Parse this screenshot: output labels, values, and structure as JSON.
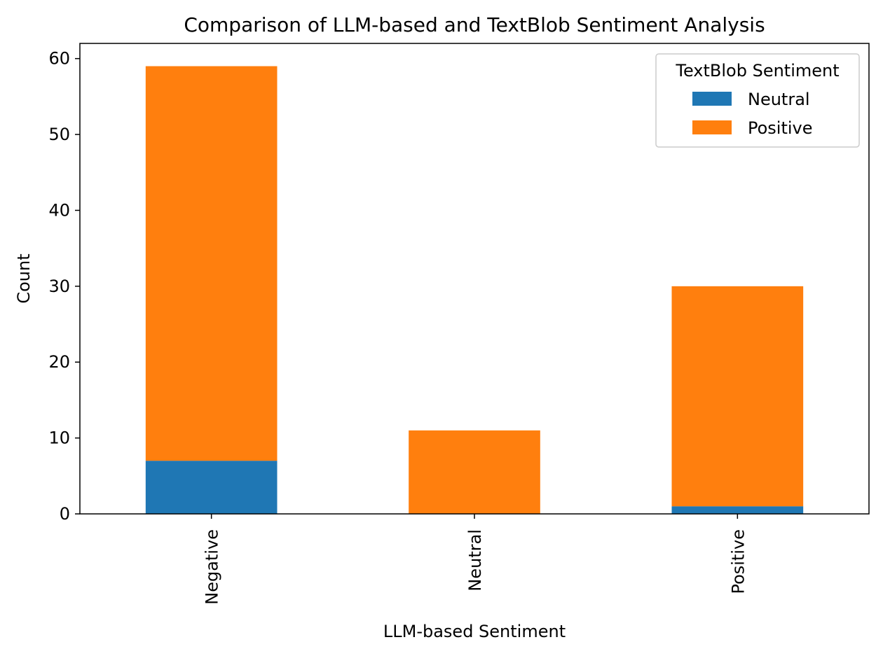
{
  "chart_data": {
    "type": "bar",
    "stacked": true,
    "title": "Comparison of LLM-based and TextBlob Sentiment Analysis",
    "xlabel": "LLM-based Sentiment",
    "ylabel": "Count",
    "categories": [
      "Negative",
      "Neutral",
      "Positive"
    ],
    "series": [
      {
        "name": "Neutral",
        "values": [
          7,
          0,
          1
        ],
        "color": "#1f77b4"
      },
      {
        "name": "Positive",
        "values": [
          52,
          11,
          29
        ],
        "color": "#ff7f0e"
      }
    ],
    "ylim": [
      0,
      62
    ],
    "yticks": [
      0,
      10,
      20,
      30,
      40,
      50,
      60
    ],
    "legend": {
      "title": "TextBlob Sentiment",
      "placement": "top-right"
    },
    "grid": false
  }
}
